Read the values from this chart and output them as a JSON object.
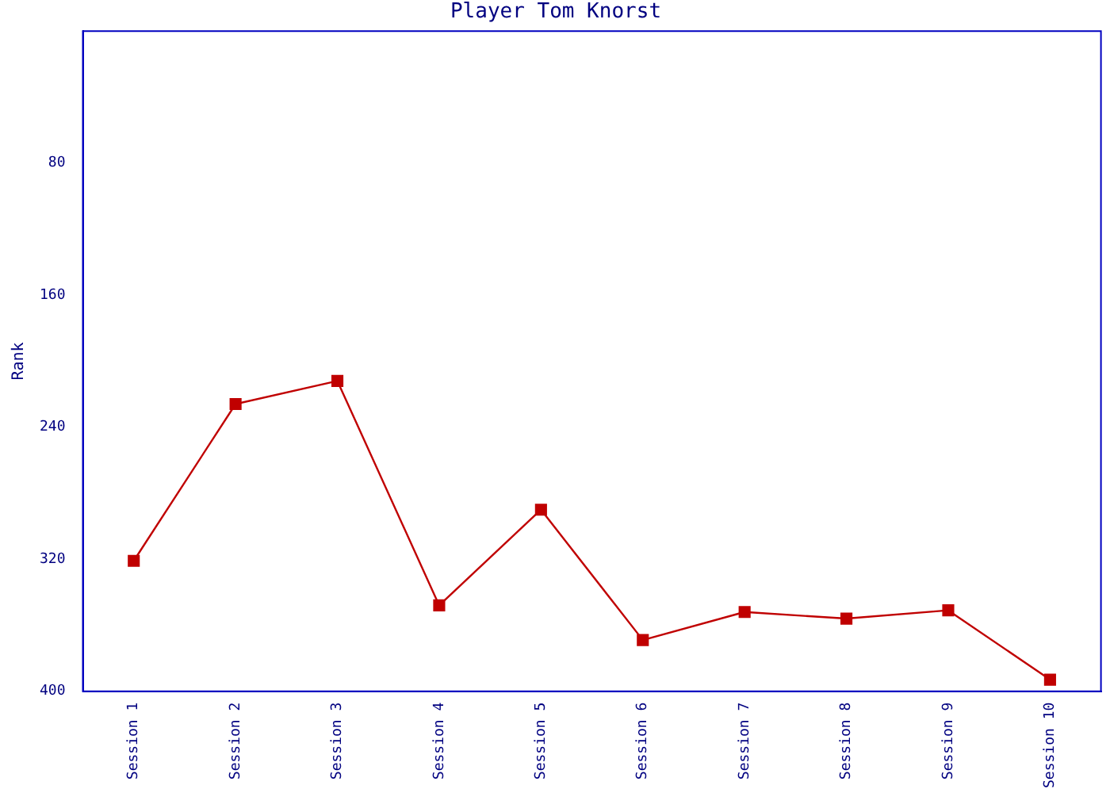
{
  "chart_data": {
    "type": "line",
    "title": "Player Tom Knorst",
    "ylabel": "Rank",
    "categories": [
      "Session 1",
      "Session 2",
      "Session 3",
      "Session 4",
      "Session 5",
      "Session 6",
      "Session 7",
      "Session 8",
      "Session 9",
      "Session 10"
    ],
    "series": [
      {
        "color": "#c00000",
        "values": [
          321,
          226,
          212,
          348,
          290,
          369,
          352,
          356,
          351,
          393
        ]
      }
    ],
    "ylim": [
      400,
      0
    ],
    "yticks": [
      80,
      160,
      240,
      320,
      400
    ],
    "grid": false,
    "legend": false,
    "marker": "square",
    "line_style": "solid"
  }
}
